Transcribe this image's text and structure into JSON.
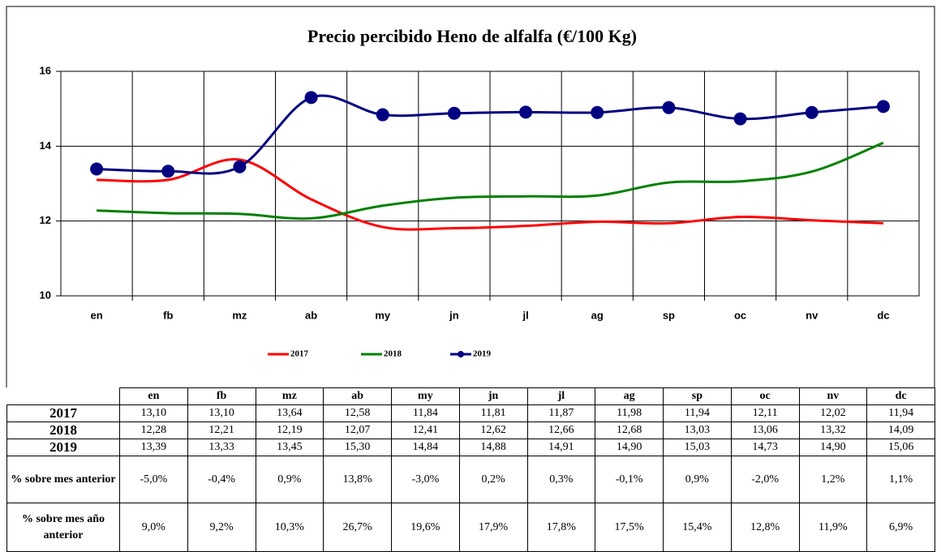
{
  "chart_data": {
    "type": "line",
    "title": "Precio percibido Heno de alfalfa (€/100 Kg)",
    "categories": [
      "en",
      "fb",
      "mz",
      "ab",
      "my",
      "jn",
      "jl",
      "ag",
      "sp",
      "oc",
      "nv",
      "dc"
    ],
    "series": [
      {
        "name": "2017",
        "color": "#ff0000",
        "marker": false,
        "values": [
          13.1,
          13.1,
          13.64,
          12.58,
          11.84,
          11.81,
          11.87,
          11.98,
          11.94,
          12.11,
          12.02,
          11.94
        ]
      },
      {
        "name": "2018",
        "color": "#008000",
        "marker": false,
        "values": [
          12.28,
          12.21,
          12.19,
          12.07,
          12.41,
          12.62,
          12.66,
          12.68,
          13.03,
          13.06,
          13.32,
          14.09
        ]
      },
      {
        "name": "2019",
        "color": "#000080",
        "marker": true,
        "values": [
          13.39,
          13.33,
          13.45,
          15.3,
          14.84,
          14.88,
          14.91,
          14.9,
          15.03,
          14.73,
          14.9,
          15.06
        ]
      }
    ],
    "ylim": [
      10,
      16
    ],
    "yticks": [
      10,
      12,
      14,
      16
    ],
    "grid": true,
    "smooth": true,
    "legend": "bottom"
  },
  "table": {
    "header": [
      "en",
      "fb",
      "mz",
      "ab",
      "my",
      "jn",
      "jl",
      "ag",
      "sp",
      "oc",
      "nv",
      "dc"
    ],
    "rows": [
      [
        "2017",
        "13,10",
        "13,10",
        "13,64",
        "12,58",
        "11,84",
        "11,81",
        "11,87",
        "11,98",
        "11,94",
        "12,11",
        "12,02",
        "11,94"
      ],
      [
        "2018",
        "12,28",
        "12,21",
        "12,19",
        "12,07",
        "12,41",
        "12,62",
        "12,66",
        "12,68",
        "13,03",
        "13,06",
        "13,32",
        "14,09"
      ],
      [
        "2019",
        "13,39",
        "13,33",
        "13,45",
        "15,30",
        "14,84",
        "14,88",
        "14,91",
        "14,90",
        "15,03",
        "14,73",
        "14,90",
        "15,06"
      ],
      [
        "% sobre mes anterior",
        "-5,0%",
        "-0,4%",
        "0,9%",
        "13,8%",
        "-3,0%",
        "0,2%",
        "0,3%",
        "-0,1%",
        "0,9%",
        "-2,0%",
        "1,2%",
        "1,1%"
      ],
      [
        "% sobre mes año anterior",
        "9,0%",
        "9,2%",
        "10,3%",
        "26,7%",
        "19,6%",
        "17,9%",
        "17,8%",
        "17,5%",
        "15,4%",
        "12,8%",
        "11,9%",
        "6,9%"
      ]
    ]
  }
}
